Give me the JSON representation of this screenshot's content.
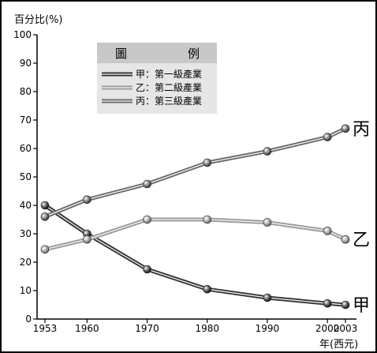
{
  "chart_data": {
    "type": "line",
    "ylabel": "百分比(%)",
    "xlabel": "年(西元)",
    "x": [
      1953,
      1960,
      1970,
      1980,
      1990,
      2000,
      2003
    ],
    "ylim": [
      0,
      100
    ],
    "yticks": [
      0,
      10,
      20,
      30,
      40,
      50,
      60,
      70,
      80,
      90,
      100
    ],
    "grid": false,
    "legend": {
      "title_left": "圖",
      "title_right": "例",
      "placement": "top-left"
    },
    "series": [
      {
        "name": "甲：第一級產業",
        "end_label": "甲",
        "color": "#333333",
        "values": [
          40,
          30,
          17.5,
          10.5,
          7.5,
          5.5,
          5
        ]
      },
      {
        "name": "乙：第二級產業",
        "end_label": "乙",
        "color": "#9a9a9a",
        "values": [
          24.5,
          28,
          35,
          35,
          34,
          31,
          28
        ]
      },
      {
        "name": "丙：第三級產業",
        "end_label": "丙",
        "color": "#6a6a6a",
        "values": [
          36,
          42,
          47.5,
          55,
          59,
          64,
          67
        ]
      }
    ]
  }
}
